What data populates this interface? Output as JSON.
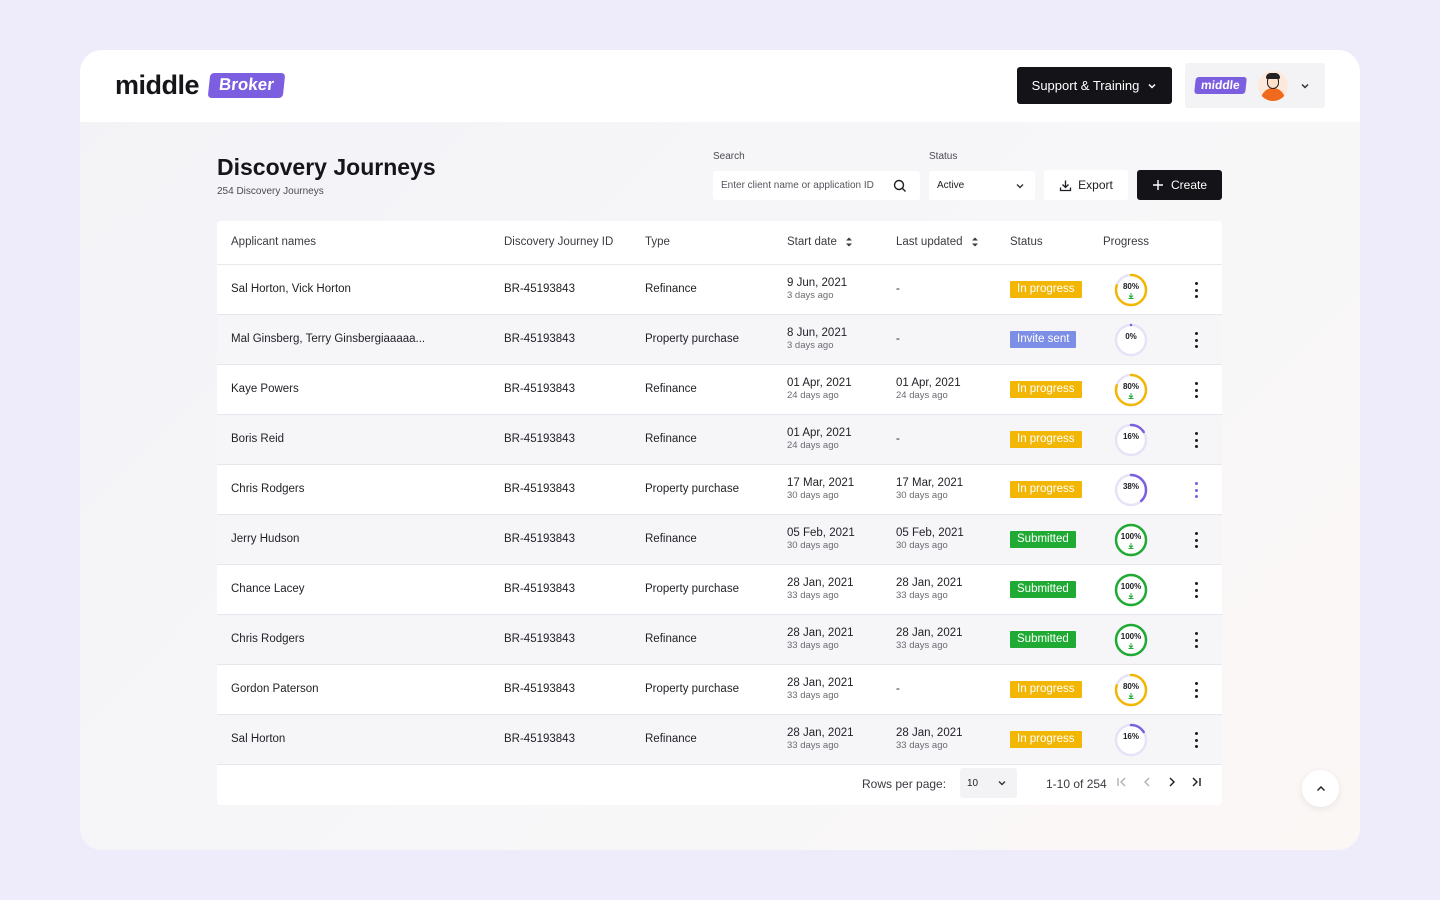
{
  "brand": {
    "logo_text": "middle",
    "badge": "Broker"
  },
  "topbar": {
    "support_label": "Support & Training",
    "account_logo": "middle",
    "account_icon": "chevron-down-icon"
  },
  "page": {
    "title": "Discovery Journeys",
    "subtitle": "254 Discovery Journeys"
  },
  "filters": {
    "search_label": "Search",
    "search_placeholder": "Enter client name or application ID",
    "status_label": "Status",
    "status_value": "Active",
    "export_label": "Export",
    "create_label": "Create"
  },
  "table": {
    "headers": [
      "Applicant names",
      "Discovery Journey ID",
      "Type",
      "Start date",
      "Last updated",
      "Status",
      "Progress"
    ],
    "rows": [
      {
        "name": "Sal Horton, Vick Horton",
        "id": "BR-45193843",
        "type": "Refinance",
        "start": "9 Jun, 2021",
        "start_ago": "3 days ago",
        "updated": "-",
        "updated_ago": "",
        "status": "In progress",
        "progress_label": "80%",
        "progress": 0.8,
        "download": true
      },
      {
        "name": "Mal Ginsberg, Terry Ginsbergiaaaaa...",
        "id": "BR-45193843",
        "type": "Property purchase",
        "start": "8 Jun, 2021",
        "start_ago": "3 days ago",
        "updated": "-",
        "updated_ago": "",
        "status": "Invite sent",
        "progress_label": "0%",
        "progress": 0,
        "download": false
      },
      {
        "name": "Kaye Powers",
        "id": "BR-45193843",
        "type": "Refinance",
        "start": "01 Apr, 2021",
        "start_ago": "24 days ago",
        "updated": "01 Apr, 2021",
        "updated_ago": "24 days ago",
        "status": "In progress",
        "progress_label": "80%",
        "progress": 0.8,
        "download": true
      },
      {
        "name": "Boris Reid",
        "id": "BR-45193843",
        "type": "Refinance",
        "start": "01 Apr, 2021",
        "start_ago": "24 days ago",
        "updated": "-",
        "updated_ago": "",
        "status": "In progress",
        "progress_label": "16%",
        "progress": 0.16,
        "download": false
      },
      {
        "name": "Chris Rodgers",
        "id": "BR-45193843",
        "type": "Property purchase",
        "start": "17 Mar, 2021",
        "start_ago": "30 days ago",
        "updated": "17 Mar, 2021",
        "updated_ago": "30 days ago",
        "status": "In progress",
        "progress_label": "38%",
        "progress": 0.38,
        "download": false,
        "active_menu": true
      },
      {
        "name": "Jerry Hudson",
        "id": "BR-45193843",
        "type": "Refinance",
        "start": "05 Feb, 2021",
        "start_ago": "30 days ago",
        "updated": "05 Feb, 2021",
        "updated_ago": "30 days ago",
        "status": "Submitted",
        "progress_label": "100%",
        "progress": 1,
        "download": true
      },
      {
        "name": "Chance Lacey",
        "id": "BR-45193843",
        "type": "Property purchase",
        "start": "28 Jan, 2021",
        "start_ago": "33 days ago",
        "updated": "28 Jan, 2021",
        "updated_ago": "33 days ago",
        "status": "Submitted",
        "progress_label": "100%",
        "progress": 1,
        "download": true
      },
      {
        "name": "Chris Rodgers",
        "id": "BR-45193843",
        "type": "Refinance",
        "start": "28 Jan, 2021",
        "start_ago": "33 days ago",
        "updated": "28 Jan, 2021",
        "updated_ago": "33 days ago",
        "status": "Submitted",
        "progress_label": "100%",
        "progress": 1,
        "download": true
      },
      {
        "name": "Gordon Paterson",
        "id": "BR-45193843",
        "type": "Property purchase",
        "start": "28 Jan, 2021",
        "start_ago": "33 days ago",
        "updated": "-",
        "updated_ago": "",
        "status": "In progress",
        "progress_label": "80%",
        "progress": 0.8,
        "download": true
      },
      {
        "name": "Sal Horton",
        "id": "BR-45193843",
        "type": "Refinance",
        "start": "28 Jan, 2021",
        "start_ago": "33 days ago",
        "updated": "28 Jan, 2021",
        "updated_ago": "33 days ago",
        "status": "In progress",
        "progress_label": "16%",
        "progress": 0.16,
        "download": false
      }
    ]
  },
  "status_colors": {
    "In progress": "#f2b705",
    "Invite sent": "#7d8ee6",
    "Submitted": "#1fab33"
  },
  "ring_colors": {
    "In progress": "#f2b705",
    "Invite sent": "#7b5fe0",
    "Submitted": "#1fab33",
    "low": "#7b5fe0",
    "track": "#e6e2f7"
  },
  "pagination": {
    "rows_label": "Rows per page:",
    "rows_value": "10",
    "range": "1-10 of 254"
  }
}
